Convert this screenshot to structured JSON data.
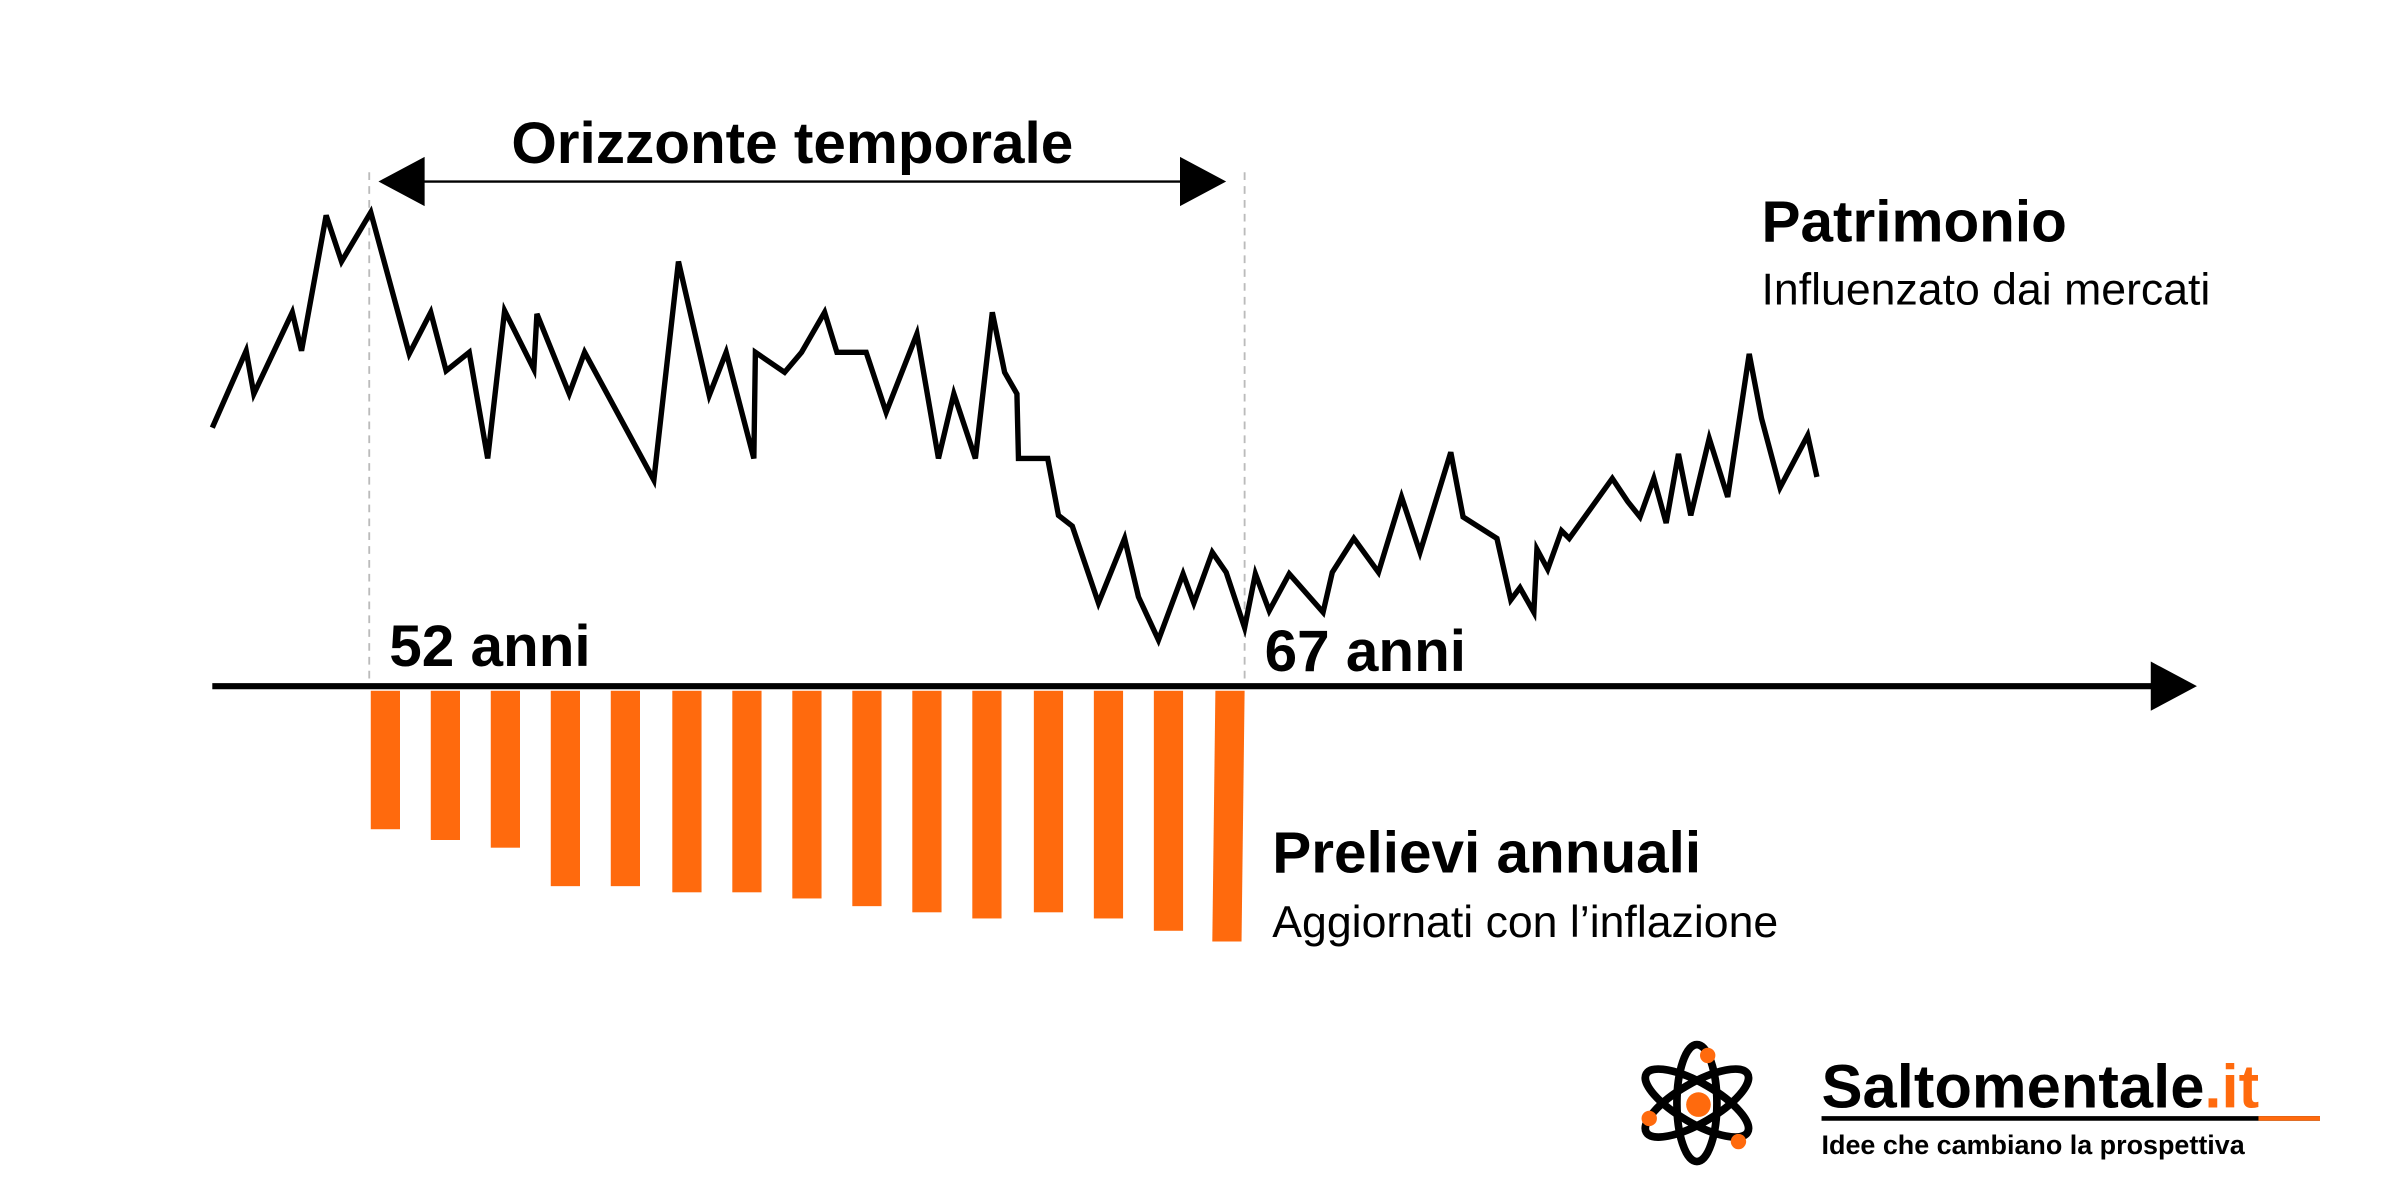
{
  "horizon": {
    "label": "Orizzonte temporale",
    "start": "52 anni",
    "end": "67 anni"
  },
  "wealth": {
    "title": "Patrimonio",
    "subtitle": "Influenzato dai mercati"
  },
  "withdrawals": {
    "title": "Prelievi annuali",
    "subtitle": "Aggiornati con l’inflazione"
  },
  "logo": {
    "brand": "Saltomentale",
    "domain": ".it",
    "tagline": "Idee che cambiano la prospettiva"
  }
}
